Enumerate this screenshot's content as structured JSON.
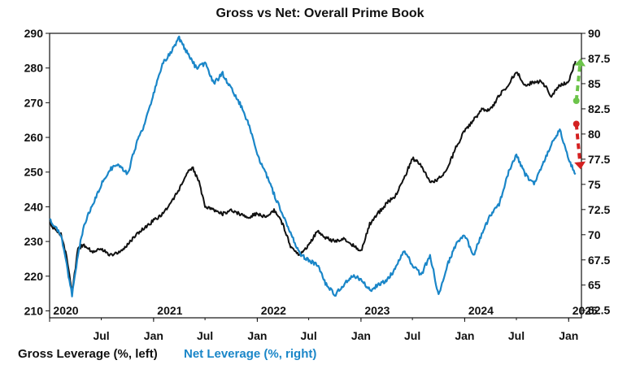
{
  "chart_data": {
    "type": "line",
    "title": "Gross vs Net: Overall Prime Book",
    "y_left": {
      "label": "Gross Leverage (%, left)",
      "min": 208,
      "max": 290,
      "ticks": [
        "290",
        "280",
        "270",
        "260",
        "250",
        "240",
        "230",
        "220",
        "210"
      ]
    },
    "y_right": {
      "label": "Net Leverage (%, right)",
      "min": 61.75,
      "max": 90,
      "ticks": [
        "90",
        "87.5",
        "85",
        "82.5",
        "80",
        "77.5",
        "75",
        "72.5",
        "70",
        "67.5",
        "65",
        "62.5"
      ]
    },
    "x_axis": {
      "start": "2020-01-01",
      "end": "2025-02-15",
      "years": [
        {
          "label": "2020",
          "date": "2020-01-01"
        },
        {
          "label": "2021",
          "date": "2021-01-01"
        },
        {
          "label": "2022",
          "date": "2022-01-01"
        },
        {
          "label": "2023",
          "date": "2023-01-01"
        },
        {
          "label": "2024",
          "date": "2024-01-01"
        },
        {
          "label": "2025",
          "date": "2025-01-01"
        }
      ],
      "months": [
        {
          "label": "Jul",
          "date": "2020-07-01"
        },
        {
          "label": "Jan",
          "date": "2021-01-01"
        },
        {
          "label": "Jul",
          "date": "2021-07-01"
        },
        {
          "label": "Jan",
          "date": "2022-01-01"
        },
        {
          "label": "Jul",
          "date": "2022-07-01"
        },
        {
          "label": "Jan",
          "date": "2023-01-01"
        },
        {
          "label": "Jul",
          "date": "2023-07-01"
        },
        {
          "label": "Jan",
          "date": "2024-01-01"
        },
        {
          "label": "Jul",
          "date": "2024-07-01"
        },
        {
          "label": "Jan",
          "date": "2025-01-01"
        }
      ]
    },
    "series": [
      {
        "name": "Gross Leverage (%, left)",
        "axis": "left",
        "color": "#111111",
        "points": [
          [
            "2020-01-01",
            235
          ],
          [
            "2020-02-10",
            232
          ],
          [
            "2020-03-01",
            226
          ],
          [
            "2020-03-20",
            215
          ],
          [
            "2020-04-10",
            228
          ],
          [
            "2020-05-01",
            229
          ],
          [
            "2020-06-01",
            227
          ],
          [
            "2020-07-01",
            228
          ],
          [
            "2020-08-01",
            226
          ],
          [
            "2020-09-01",
            227
          ],
          [
            "2020-10-01",
            229
          ],
          [
            "2020-11-01",
            232
          ],
          [
            "2020-12-01",
            234
          ],
          [
            "2021-01-01",
            236
          ],
          [
            "2021-02-01",
            238
          ],
          [
            "2021-03-01",
            241
          ],
          [
            "2021-04-01",
            245
          ],
          [
            "2021-05-01",
            250
          ],
          [
            "2021-05-20",
            251
          ],
          [
            "2021-06-10",
            247
          ],
          [
            "2021-07-01",
            240
          ],
          [
            "2021-08-01",
            239
          ],
          [
            "2021-09-01",
            238
          ],
          [
            "2021-10-01",
            239
          ],
          [
            "2021-11-01",
            238
          ],
          [
            "2021-12-01",
            237
          ],
          [
            "2022-01-01",
            238
          ],
          [
            "2022-02-01",
            237
          ],
          [
            "2022-03-01",
            239
          ],
          [
            "2022-04-01",
            235
          ],
          [
            "2022-05-01",
            228
          ],
          [
            "2022-06-01",
            226
          ],
          [
            "2022-07-01",
            229
          ],
          [
            "2022-08-01",
            233
          ],
          [
            "2022-09-01",
            231
          ],
          [
            "2022-10-01",
            230
          ],
          [
            "2022-11-01",
            231
          ],
          [
            "2022-12-01",
            229
          ],
          [
            "2023-01-01",
            227
          ],
          [
            "2023-02-01",
            235
          ],
          [
            "2023-03-01",
            238
          ],
          [
            "2023-04-01",
            241
          ],
          [
            "2023-05-01",
            243
          ],
          [
            "2023-06-01",
            248
          ],
          [
            "2023-07-01",
            254
          ],
          [
            "2023-08-01",
            252
          ],
          [
            "2023-09-01",
            247
          ],
          [
            "2023-10-01",
            248
          ],
          [
            "2023-11-01",
            251
          ],
          [
            "2023-12-01",
            257
          ],
          [
            "2024-01-01",
            262
          ],
          [
            "2024-02-01",
            265
          ],
          [
            "2024-03-01",
            268
          ],
          [
            "2024-04-01",
            268
          ],
          [
            "2024-05-01",
            272
          ],
          [
            "2024-06-01",
            275
          ],
          [
            "2024-07-01",
            279
          ],
          [
            "2024-08-01",
            275
          ],
          [
            "2024-09-01",
            276
          ],
          [
            "2024-10-01",
            276
          ],
          [
            "2024-11-01",
            272
          ],
          [
            "2024-12-01",
            275
          ],
          [
            "2025-01-01",
            276
          ],
          [
            "2025-01-25",
            282
          ]
        ]
      },
      {
        "name": "Net Leverage (%, right)",
        "axis": "right",
        "color": "#1a86c8",
        "points": [
          [
            "2020-01-01",
            71.5
          ],
          [
            "2020-02-10",
            70
          ],
          [
            "2020-03-01",
            67
          ],
          [
            "2020-03-20",
            64
          ],
          [
            "2020-04-10",
            68
          ],
          [
            "2020-05-01",
            71
          ],
          [
            "2020-06-01",
            73
          ],
          [
            "2020-07-01",
            75
          ],
          [
            "2020-08-01",
            76.5
          ],
          [
            "2020-09-01",
            77
          ],
          [
            "2020-10-01",
            76
          ],
          [
            "2020-11-01",
            79
          ],
          [
            "2020-12-01",
            81
          ],
          [
            "2021-01-01",
            84
          ],
          [
            "2021-02-01",
            87
          ],
          [
            "2021-03-01",
            88
          ],
          [
            "2021-04-01",
            89.5
          ],
          [
            "2021-05-01",
            88
          ],
          [
            "2021-06-01",
            86.5
          ],
          [
            "2021-07-01",
            87
          ],
          [
            "2021-08-01",
            85
          ],
          [
            "2021-09-01",
            86
          ],
          [
            "2021-10-01",
            84.5
          ],
          [
            "2021-11-01",
            83
          ],
          [
            "2021-12-01",
            81
          ],
          [
            "2022-01-01",
            78
          ],
          [
            "2022-02-01",
            76
          ],
          [
            "2022-03-01",
            74
          ],
          [
            "2022-04-01",
            72
          ],
          [
            "2022-05-01",
            70
          ],
          [
            "2022-06-01",
            68
          ],
          [
            "2022-07-01",
            67.5
          ],
          [
            "2022-08-01",
            67
          ],
          [
            "2022-09-01",
            65
          ],
          [
            "2022-10-01",
            64
          ],
          [
            "2022-11-01",
            65
          ],
          [
            "2022-12-01",
            66
          ],
          [
            "2023-01-01",
            65.5
          ],
          [
            "2023-02-01",
            64.5
          ],
          [
            "2023-03-01",
            65
          ],
          [
            "2023-04-01",
            65.5
          ],
          [
            "2023-05-01",
            66.5
          ],
          [
            "2023-06-01",
            68.5
          ],
          [
            "2023-07-01",
            67
          ],
          [
            "2023-08-01",
            66
          ],
          [
            "2023-09-01",
            68
          ],
          [
            "2023-10-01",
            64
          ],
          [
            "2023-11-01",
            67
          ],
          [
            "2023-12-01",
            69
          ],
          [
            "2024-01-01",
            70
          ],
          [
            "2024-02-01",
            68
          ],
          [
            "2024-03-01",
            70
          ],
          [
            "2024-04-01",
            72
          ],
          [
            "2024-05-01",
            73
          ],
          [
            "2024-06-01",
            76
          ],
          [
            "2024-07-01",
            78
          ],
          [
            "2024-08-01",
            76
          ],
          [
            "2024-09-01",
            75
          ],
          [
            "2024-10-01",
            77
          ],
          [
            "2024-11-01",
            79
          ],
          [
            "2024-12-01",
            80.5
          ],
          [
            "2025-01-01",
            77.5
          ],
          [
            "2025-01-25",
            76
          ]
        ]
      }
    ],
    "annotations": [
      {
        "type": "dashed-arrow",
        "color": "#6cc44a",
        "axis": "right",
        "from": [
          "2025-01-28",
          83.3
        ],
        "to": [
          "2025-02-12",
          87.5
        ]
      },
      {
        "type": "dashed-arrow",
        "color": "#d42020",
        "axis": "right",
        "from": [
          "2025-01-28",
          81
        ],
        "to": [
          "2025-02-12",
          76.5
        ]
      }
    ],
    "legend_position": "bottom-left",
    "grid": false
  }
}
